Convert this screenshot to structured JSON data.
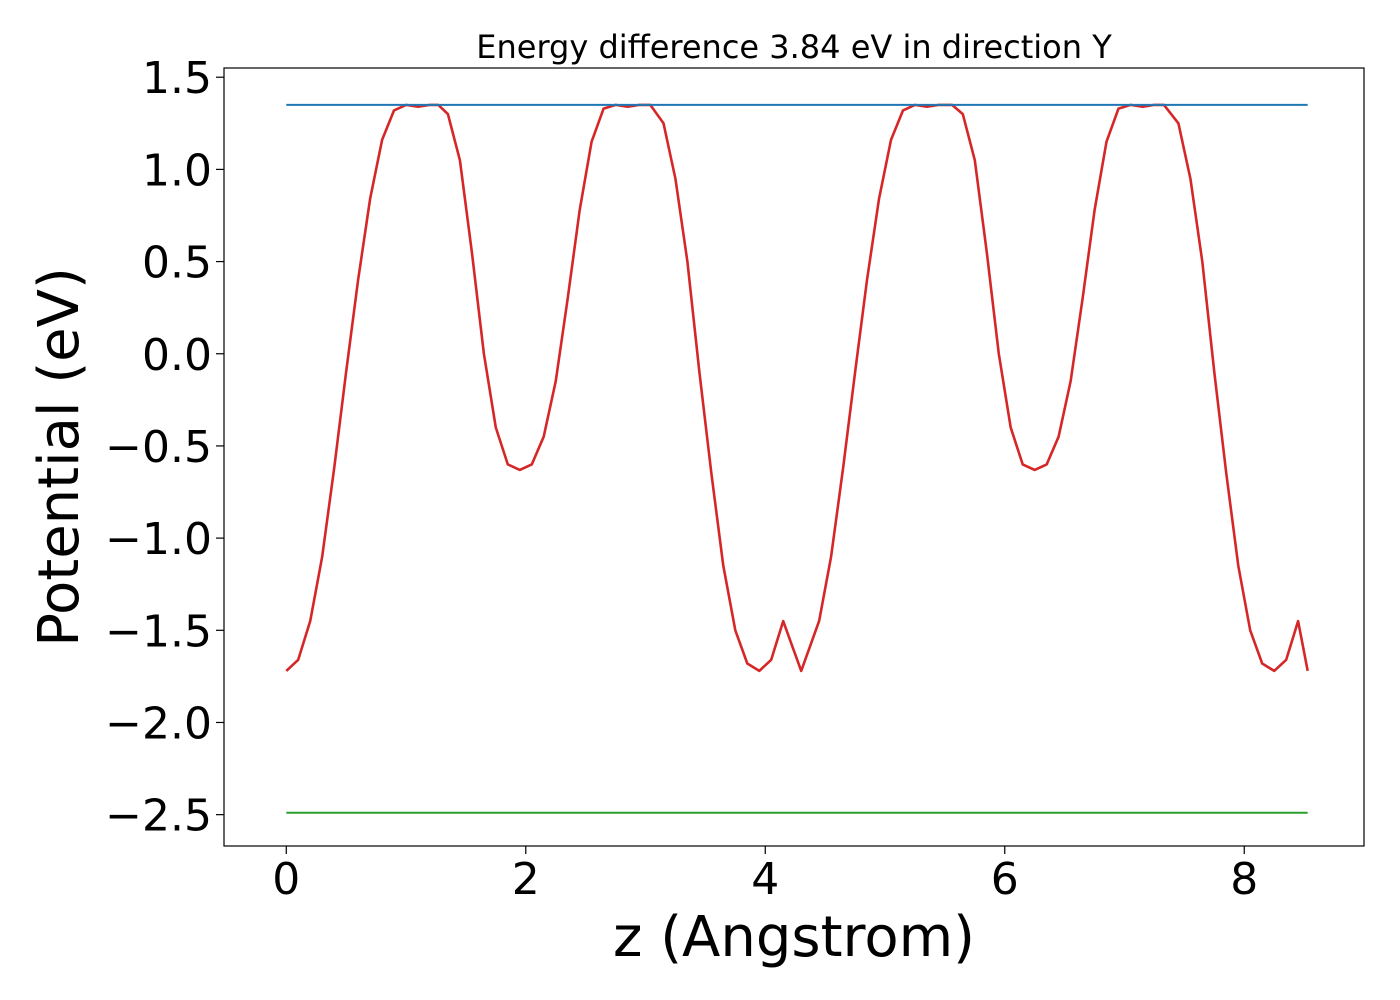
{
  "chart_data": {
    "type": "line",
    "title": "Energy difference 3.84 eV in direction Y",
    "xlabel": "z (Angstrom)",
    "ylabel": "Potential (eV)",
    "xlim": [
      -0.52,
      9.0
    ],
    "ylim": [
      -2.67,
      1.55
    ],
    "xticks": [
      {
        "value": 0,
        "label": "0"
      },
      {
        "value": 2,
        "label": "2"
      },
      {
        "value": 4,
        "label": "4"
      },
      {
        "value": 6,
        "label": "6"
      },
      {
        "value": 8,
        "label": "8"
      }
    ],
    "yticks": [
      {
        "value": 1.5,
        "label": "1.5"
      },
      {
        "value": 1.0,
        "label": "1.0"
      },
      {
        "value": 0.5,
        "label": "0.5"
      },
      {
        "value": 0.0,
        "label": "0.0"
      },
      {
        "value": -0.5,
        "label": "−0.5"
      },
      {
        "value": -1.0,
        "label": "−1.0"
      },
      {
        "value": -1.5,
        "label": "−1.5"
      },
      {
        "value": -2.0,
        "label": "−2.0"
      },
      {
        "value": -2.5,
        "label": "−2.5"
      }
    ],
    "grid": false,
    "series": [
      {
        "color": "#d62728",
        "x": [
          0.0,
          0.1,
          0.2,
          0.3,
          0.4,
          0.5,
          0.6,
          0.7,
          0.8,
          0.9,
          1.0,
          1.1,
          1.2,
          1.27,
          1.35,
          1.45,
          1.55,
          1.65,
          1.75,
          1.85,
          1.95,
          2.05,
          2.15,
          2.25,
          2.35,
          2.45,
          2.55,
          2.65,
          2.75,
          2.85,
          2.95,
          3.04,
          3.15,
          3.25,
          3.35,
          3.45,
          3.55,
          3.65,
          3.75,
          3.85,
          3.95,
          4.05,
          4.15,
          4.3,
          4.45,
          4.55,
          4.65,
          4.75,
          4.85,
          4.95,
          5.05,
          5.15,
          5.25,
          5.35,
          5.45,
          5.56,
          5.65,
          5.75,
          5.85,
          5.95,
          6.05,
          6.15,
          6.25,
          6.35,
          6.45,
          6.55,
          6.65,
          6.75,
          6.85,
          6.95,
          7.05,
          7.15,
          7.25,
          7.33,
          7.45,
          7.55,
          7.65,
          7.75,
          7.85,
          7.95,
          8.05,
          8.15,
          8.25,
          8.35,
          8.45,
          8.53
        ],
        "y": [
          -1.72,
          -1.66,
          -1.45,
          -1.1,
          -0.62,
          -0.1,
          0.4,
          0.84,
          1.16,
          1.32,
          1.35,
          1.34,
          1.35,
          1.35,
          1.3,
          1.05,
          0.55,
          0.0,
          -0.4,
          -0.6,
          -0.63,
          -0.6,
          -0.45,
          -0.15,
          0.3,
          0.78,
          1.15,
          1.33,
          1.35,
          1.34,
          1.35,
          1.35,
          1.25,
          0.95,
          0.5,
          -0.1,
          -0.65,
          -1.15,
          -1.5,
          -1.68,
          -1.72,
          -1.66,
          -1.45,
          -1.72,
          -1.45,
          -1.1,
          -0.62,
          -0.1,
          0.4,
          0.84,
          1.16,
          1.32,
          1.35,
          1.34,
          1.35,
          1.35,
          1.3,
          1.05,
          0.55,
          0.0,
          -0.4,
          -0.6,
          -0.63,
          -0.6,
          -0.45,
          -0.15,
          0.3,
          0.78,
          1.15,
          1.33,
          1.35,
          1.34,
          1.35,
          1.35,
          1.25,
          0.95,
          0.5,
          -0.1,
          -0.65,
          -1.15,
          -1.5,
          -1.68,
          -1.72,
          -1.66,
          -1.45,
          -1.72
        ]
      },
      {
        "color": "#1f77b4",
        "x": [
          0.0,
          8.53
        ],
        "y": [
          1.35,
          1.35
        ]
      },
      {
        "color": "#2ca02c",
        "x": [
          0.0,
          8.53
        ],
        "y": [
          -2.49,
          -2.49
        ]
      }
    ]
  }
}
